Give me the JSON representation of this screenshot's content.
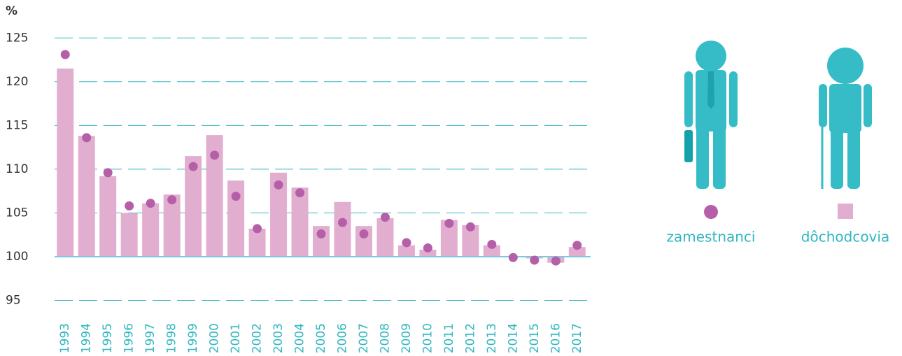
{
  "chart_data": {
    "type": "bar",
    "y_label": "%",
    "categories": [
      "1993",
      "1994",
      "1995",
      "1996",
      "1997",
      "1998",
      "1999",
      "2000",
      "2001",
      "2002",
      "2003",
      "2004",
      "2005",
      "2006",
      "2007",
      "2008",
      "2009",
      "2010",
      "2011",
      "2012",
      "2013",
      "2014",
      "2015",
      "2016",
      "2017"
    ],
    "series": [
      {
        "name": "zamestnanci",
        "type": "scatter",
        "color": "#b55fa8",
        "values": [
          123.1,
          113.6,
          109.6,
          105.8,
          106.1,
          106.5,
          110.3,
          111.6,
          106.9,
          103.2,
          108.2,
          107.3,
          102.6,
          103.9,
          102.6,
          104.5,
          101.6,
          101.0,
          103.8,
          103.4,
          101.4,
          99.9,
          99.6,
          99.5,
          101.3
        ]
      },
      {
        "name": "dôchodcovia",
        "type": "bar",
        "color": "#e2aed0",
        "values": [
          121.5,
          113.8,
          109.2,
          105.0,
          106.1,
          107.1,
          111.5,
          113.9,
          108.7,
          103.2,
          109.6,
          107.9,
          103.5,
          106.25,
          103.5,
          104.4,
          101.3,
          100.8,
          104.2,
          103.6,
          101.3,
          100.0,
          99.8,
          99.3,
          101.1
        ]
      }
    ],
    "baseline": 100,
    "ylim": [
      94,
      125.5
    ],
    "yticks": [
      95,
      100,
      105,
      110,
      115,
      120,
      125
    ],
    "grid": true
  }
}
